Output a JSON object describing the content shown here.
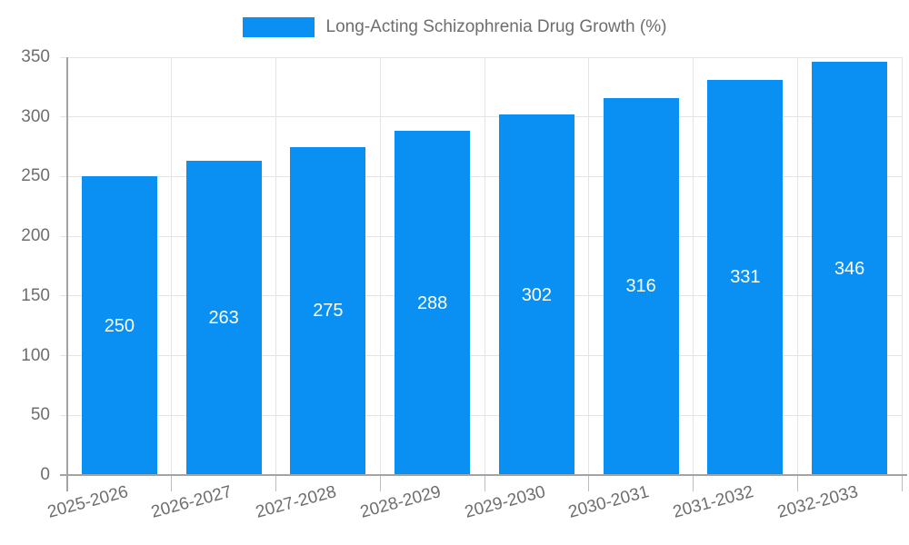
{
  "legend": {
    "label": "Long-Acting Schizophrenia Drug Growth (%)"
  },
  "chart_data": {
    "type": "bar",
    "title": "Long-Acting Schizophrenia Drug Growth (%)",
    "categories": [
      "2025-2026",
      "2026-2027",
      "2027-2028",
      "2028-2029",
      "2029-2030",
      "2030-2031",
      "2031-2032",
      "2032-2033"
    ],
    "values": [
      250,
      263,
      275,
      288,
      302,
      316,
      331,
      346
    ],
    "bar_labels": [
      "250",
      "263",
      "275",
      "288",
      "302",
      "316",
      "331",
      "346"
    ],
    "xlabel": "",
    "ylabel": "",
    "ylim": [
      0,
      350
    ],
    "yticks": [
      0,
      50,
      100,
      150,
      200,
      250,
      300,
      350
    ],
    "grid": true,
    "legend_position": "top-center",
    "x_tick_label_rotation_deg": -15,
    "colors": {
      "bar": "#0a90f2",
      "bar_label": "#ffffff",
      "axis_text": "#6e6e6e",
      "grid_line": "#e4e4e4",
      "axis_line": "#a3a3a3",
      "tick_line": "#bdbdbd",
      "background": "#ffffff"
    }
  }
}
